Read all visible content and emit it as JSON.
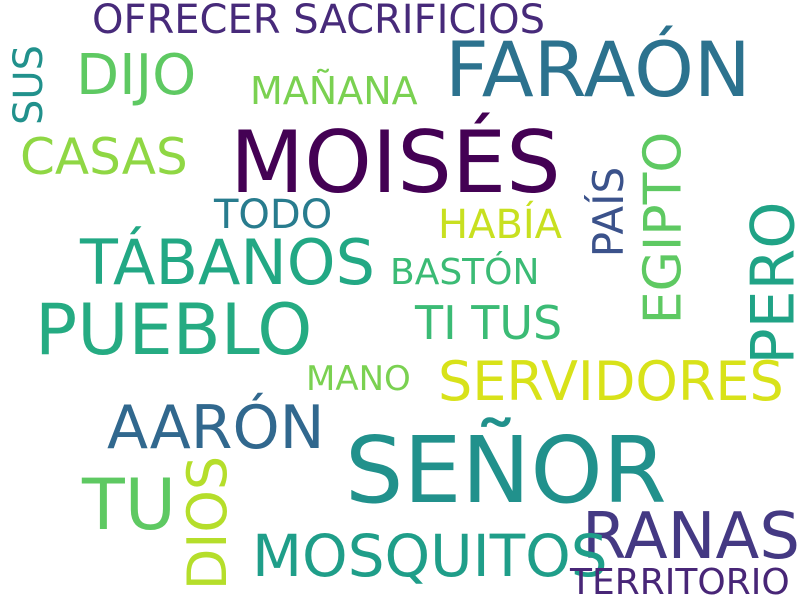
{
  "words": [
    {
      "text": "OFRECER SACRIFICIOS",
      "color": "#472a7a"
    },
    {
      "text": "FARAÓN",
      "color": "#2c728e"
    },
    {
      "text": "SUS",
      "color": "#21918c"
    },
    {
      "text": "DIJO",
      "color": "#5ec962"
    },
    {
      "text": "MAÑANA",
      "color": "#7ad151"
    },
    {
      "text": "CASAS",
      "color": "#8fd744"
    },
    {
      "text": "MOISÉS",
      "color": "#440154"
    },
    {
      "text": "EGIPTO",
      "color": "#5ec962"
    },
    {
      "text": "TODO",
      "color": "#287c8e"
    },
    {
      "text": "PAÍS",
      "color": "#3b528b"
    },
    {
      "text": "HABÍA",
      "color": "#c8e020"
    },
    {
      "text": "TÁBANOS",
      "color": "#22a884"
    },
    {
      "text": "BASTÓN",
      "color": "#3bbb75"
    },
    {
      "text": "PERO",
      "color": "#20a386"
    },
    {
      "text": "PUEBLO",
      "color": "#25ab82"
    },
    {
      "text": "TI TUS",
      "color": "#3bbb75"
    },
    {
      "text": "MANO",
      "color": "#7ad151"
    },
    {
      "text": "SERVIDORES",
      "color": "#d8e219"
    },
    {
      "text": "AARÓN",
      "color": "#31688e"
    },
    {
      "text": "SEÑOR",
      "color": "#21918c"
    },
    {
      "text": "TU",
      "color": "#5ec962"
    },
    {
      "text": "DIOS",
      "color": "#b5de2b"
    },
    {
      "text": "RANAS",
      "color": "#443983"
    },
    {
      "text": "MOSQUITOS",
      "color": "#1f9e89"
    },
    {
      "text": "TERRITORIO",
      "color": "#482677"
    }
  ]
}
